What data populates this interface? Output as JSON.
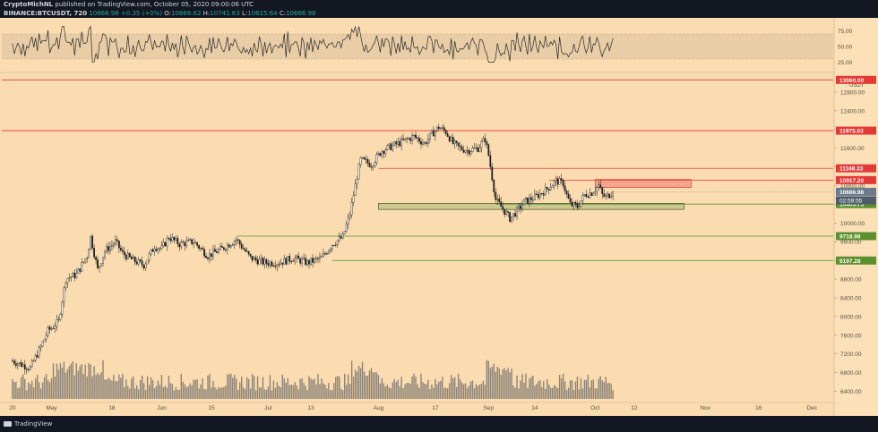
{
  "header": {
    "line1_author": "CryptoMichNL",
    "line1_rest": "published on TradingView.com, October 05, 2020 09:00:06 UTC",
    "symbol": "BINANCE:BTCUSDT, 720",
    "last": "10666.98",
    "change": "+0.35 (+0%)",
    "open_label": "O:",
    "open": "10666.62",
    "high_label": "H:",
    "high": "10741.63",
    "low_label": "L:",
    "low": "10615.64",
    "close_label": "C:",
    "close": "10666.98"
  },
  "footer": {
    "brand": "TradingView"
  },
  "colors": {
    "background": "#fadcb0",
    "rsi_band": "#e8cda6",
    "candle": "#1e1e1e",
    "volume": "#8c8377",
    "resistance": "#e53935",
    "support": "#5c8f2e",
    "resistance_zone": "#f4a48c",
    "support_zone": "#ccc890",
    "gray_label": "#6d7a8b"
  },
  "chart_data": {
    "type": "candlestick",
    "symbol": "BTCUSDT",
    "exchange": "BINANCE",
    "interval": "720",
    "ylim": [
      6200,
      13200
    ],
    "price_ticks": [
      12800,
      12400,
      12000,
      11600,
      11200,
      10800,
      10400,
      10000,
      9600,
      9200,
      8800,
      8400,
      8000,
      7600,
      7200,
      6800,
      6400
    ],
    "price_tick_labels": [
      "12800.00",
      "12400.00",
      "12000.00",
      "11600.00",
      "11200.00",
      "10800.00",
      "10400.00",
      "10000.00",
      "9600.00",
      "9200.00",
      "8800.00",
      "8400.00",
      "8000.00",
      "7600.00",
      "7200.00",
      "6800.00",
      "6400.00"
    ],
    "time_ticks": [
      "20",
      "May",
      "18",
      "Jun",
      "15",
      "Jul",
      "13",
      "Aug",
      "17",
      "Sep",
      "14",
      "Oct",
      "12",
      "Nov",
      "16",
      "Dec"
    ],
    "time_tick_days": [
      -11,
      0,
      17,
      31,
      45,
      61,
      73,
      92,
      108,
      123,
      136,
      153,
      164,
      184,
      199,
      214
    ],
    "data_end_day": 158,
    "rsi": {
      "ticks": [
        75,
        50,
        25
      ],
      "tick_labels": [
        "75.00",
        "50.00",
        "25.00"
      ],
      "band": [
        30,
        70
      ],
      "ylim": [
        10,
        90
      ]
    },
    "axis_unit": "USDT",
    "levels": [
      {
        "price": 13060,
        "label": "13060.00",
        "color": "#e53935"
      },
      {
        "price": 11975.03,
        "label": "11975.03",
        "color": "#e53935"
      },
      {
        "price": 11168.33,
        "label": "11168.33",
        "color": "#e53935"
      },
      {
        "price": 10917.2,
        "label": "10917.20",
        "color": "#e53935"
      },
      {
        "price": 10403.75,
        "label": "10403.75",
        "color": "#5c8f2e"
      },
      {
        "price": 9718.98,
        "label": "9718.98",
        "color": "#5c8f2e"
      },
      {
        "price": 9197.28,
        "label": "9197.28",
        "color": "#5c8f2e"
      }
    ],
    "current_price": {
      "price": 10666.98,
      "label": "10666.98",
      "countdown": "02:59:55"
    },
    "zones": [
      {
        "type": "resistance",
        "day_start": 153,
        "day_end": 180,
        "price_low": 10760,
        "price_high": 10930
      },
      {
        "type": "support",
        "day_start": 92,
        "day_end": 178,
        "price_low": 10290,
        "price_high": 10420
      }
    ],
    "price_path": [
      [
        -11,
        7050
      ],
      [
        -6,
        6900
      ],
      [
        -3,
        7350
      ],
      [
        -1,
        7700
      ],
      [
        0,
        7750
      ],
      [
        2,
        7900
      ],
      [
        4,
        8800
      ],
      [
        7,
        8900
      ],
      [
        10,
        9300
      ],
      [
        11,
        9700
      ],
      [
        13,
        9000
      ],
      [
        15,
        9400
      ],
      [
        18,
        9600
      ],
      [
        20,
        9350
      ],
      [
        23,
        9200
      ],
      [
        26,
        9100
      ],
      [
        29,
        9500
      ],
      [
        31,
        9450
      ],
      [
        33,
        9700
      ],
      [
        36,
        9550
      ],
      [
        40,
        9600
      ],
      [
        44,
        9300
      ],
      [
        48,
        9450
      ],
      [
        52,
        9650
      ],
      [
        56,
        9250
      ],
      [
        60,
        9150
      ],
      [
        64,
        9150
      ],
      [
        68,
        9250
      ],
      [
        72,
        9150
      ],
      [
        76,
        9250
      ],
      [
        79,
        9550
      ],
      [
        82,
        9700
      ],
      [
        84,
        10200
      ],
      [
        86,
        11000
      ],
      [
        87,
        11350
      ],
      [
        90,
        11250
      ],
      [
        93,
        11550
      ],
      [
        96,
        11650
      ],
      [
        99,
        11750
      ],
      [
        102,
        11850
      ],
      [
        105,
        11700
      ],
      [
        107,
        11900
      ],
      [
        109,
        12050
      ],
      [
        111,
        11950
      ],
      [
        113,
        11700
      ],
      [
        115,
        11600
      ],
      [
        117,
        11550
      ],
      [
        120,
        11600
      ],
      [
        122,
        11800
      ],
      [
        123,
        11450
      ],
      [
        125,
        10500
      ],
      [
        127,
        10300
      ],
      [
        129,
        10100
      ],
      [
        131,
        10250
      ],
      [
        133,
        10450
      ],
      [
        136,
        10550
      ],
      [
        139,
        10700
      ],
      [
        142,
        10900
      ],
      [
        144,
        10850
      ],
      [
        145,
        10600
      ],
      [
        146,
        10400
      ],
      [
        148,
        10350
      ],
      [
        150,
        10600
      ],
      [
        152,
        10650
      ],
      [
        154,
        10800
      ],
      [
        155,
        10600
      ],
      [
        156,
        10550
      ],
      [
        158,
        10667
      ]
    ]
  }
}
